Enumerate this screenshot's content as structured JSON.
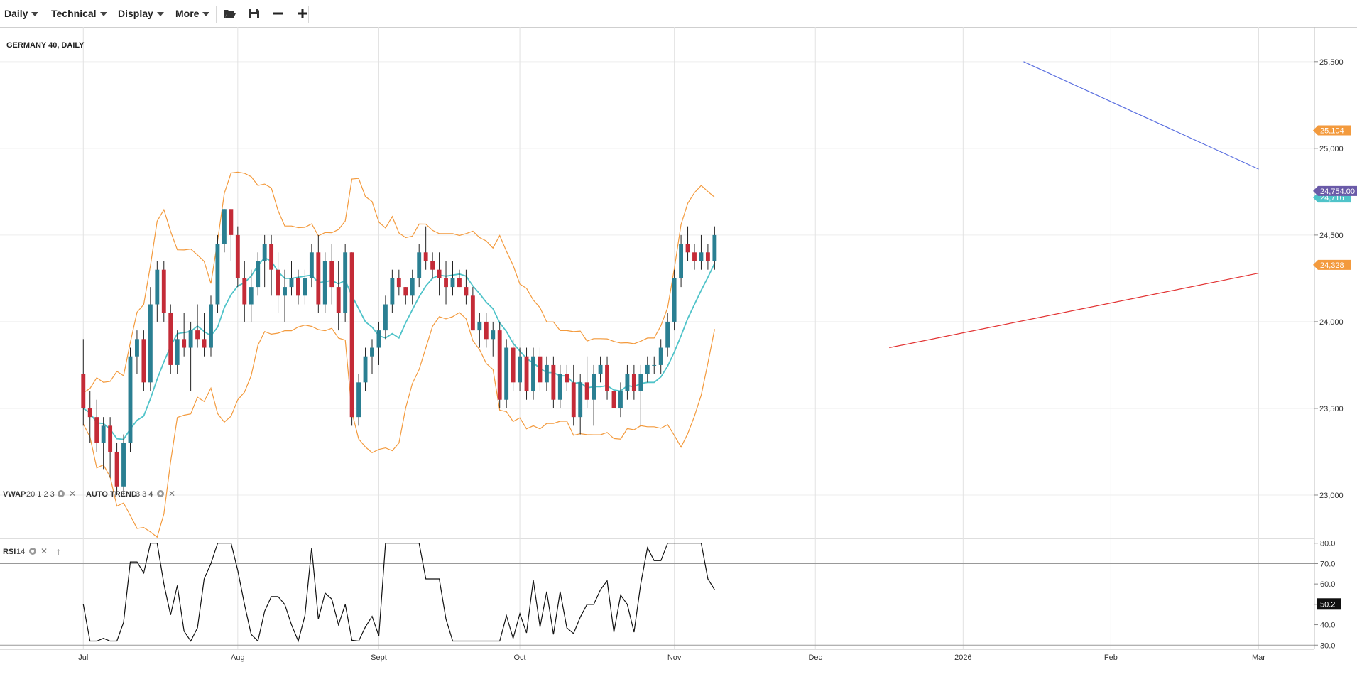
{
  "toolbar": {
    "period": "Daily",
    "technical": "Technical",
    "display": "Display",
    "more": "More"
  },
  "chart_data": {
    "type": "candlestick",
    "title": "GERMANY 40, DAILY",
    "y_ticks": [
      "25,500",
      "25,000",
      "24,500",
      "24,000",
      "23,500",
      "23,000"
    ],
    "y_tick_values": [
      25500,
      25000,
      24500,
      24000,
      23500,
      23000
    ],
    "ylim": [
      22750,
      25700
    ],
    "x_month_labels": [
      "Jul",
      "Aug",
      "Sept",
      "Oct",
      "Nov",
      "Dec",
      "2026",
      "Feb",
      "Mar"
    ],
    "x_month_index": [
      0,
      23,
      44,
      65,
      88,
      109,
      131,
      153,
      175
    ],
    "x_index_range": [
      -12.4,
      183.3
    ],
    "price_labels": {
      "upper_band": "25,104",
      "last_price": "24,754.00",
      "vwap": "24,716",
      "lower_band": "24,328"
    },
    "colors": {
      "up": "#2a7f92",
      "down": "#c42b37",
      "vwap": "#4fc3c9",
      "bands": "#f39a3d",
      "trend_down": "#5a6fe0",
      "trend_up": "#e23232",
      "price_tag": "#6a5aa8",
      "band_tag": "#f39a3d"
    },
    "indicators": [
      {
        "name": "VWAP",
        "params": "20 1 2 3"
      },
      {
        "name": "AUTO TREND",
        "params": "3 3 4"
      }
    ],
    "rsi": {
      "label": "RSI",
      "period": "14",
      "y_ticks": [
        "80.0",
        "70.0",
        "60.0",
        "50.0",
        "40.0",
        "30.0"
      ],
      "y_tick_values": [
        80,
        70,
        60,
        50,
        40,
        30
      ],
      "current": "50.2",
      "ylim": [
        28,
        82
      ]
    },
    "candles_ohlc": [
      [
        23700,
        23900,
        23400,
        23500
      ],
      [
        23500,
        23600,
        23300,
        23450
      ],
      [
        23450,
        23550,
        23250,
        23300
      ],
      [
        23300,
        23450,
        23150,
        23400
      ],
      [
        23400,
        23450,
        23100,
        23250
      ],
      [
        23250,
        23300,
        23000,
        23050
      ],
      [
        23050,
        23350,
        23000,
        23300
      ],
      [
        23300,
        23850,
        23250,
        23800
      ],
      [
        23800,
        23950,
        23700,
        23900
      ],
      [
        23900,
        23950,
        23600,
        23650
      ],
      [
        23650,
        24200,
        23600,
        24100
      ],
      [
        24100,
        24350,
        24000,
        24300
      ],
      [
        24300,
        24350,
        24000,
        24050
      ],
      [
        24050,
        24100,
        23700,
        23750
      ],
      [
        23750,
        23950,
        23700,
        23900
      ],
      [
        23900,
        24050,
        23800,
        23850
      ],
      [
        23850,
        24000,
        23600,
        23950
      ],
      [
        23950,
        24100,
        23850,
        23900
      ],
      [
        23900,
        24050,
        23800,
        23850
      ],
      [
        23850,
        24150,
        23800,
        24100
      ],
      [
        24100,
        24500,
        24050,
        24450
      ],
      [
        24450,
        24650,
        24400,
        24650
      ],
      [
        24650,
        24650,
        24350,
        24500
      ],
      [
        24500,
        24550,
        24200,
        24250
      ],
      [
        24250,
        24350,
        24000,
        24100
      ],
      [
        24100,
        24300,
        24000,
        24200
      ],
      [
        24200,
        24400,
        24150,
        24350
      ],
      [
        24350,
        24500,
        24200,
        24450
      ],
      [
        24450,
        24500,
        24150,
        24300
      ],
      [
        24300,
        24400,
        24050,
        24150
      ],
      [
        24150,
        24300,
        24000,
        24200
      ],
      [
        24200,
        24350,
        24150,
        24250
      ],
      [
        24250,
        24300,
        24100,
        24150
      ],
      [
        24150,
        24300,
        24100,
        24250
      ],
      [
        24250,
        24450,
        24200,
        24400
      ],
      [
        24400,
        24500,
        24050,
        24100
      ],
      [
        24100,
        24400,
        24050,
        24350
      ],
      [
        24350,
        24450,
        24100,
        24200
      ],
      [
        24200,
        24350,
        23950,
        24050
      ],
      [
        24050,
        24450,
        24000,
        24400
      ],
      [
        24400,
        24400,
        23400,
        23450
      ],
      [
        23450,
        23700,
        23400,
        23650
      ],
      [
        23650,
        23850,
        23600,
        23800
      ],
      [
        23800,
        23900,
        23700,
        23850
      ],
      [
        23850,
        24000,
        23750,
        23950
      ],
      [
        23950,
        24150,
        23900,
        24100
      ],
      [
        24100,
        24300,
        24050,
        24250
      ],
      [
        24250,
        24300,
        24150,
        24200
      ],
      [
        24200,
        24200,
        24100,
        24150
      ],
      [
        24150,
        24300,
        24100,
        24250
      ],
      [
        24250,
        24450,
        24200,
        24400
      ],
      [
        24400,
        24550,
        24300,
        24350
      ],
      [
        24350,
        24400,
        24250,
        24300
      ],
      [
        24300,
        24400,
        24150,
        24250
      ],
      [
        24250,
        24350,
        24100,
        24200
      ],
      [
        24200,
        24350,
        24150,
        24250
      ],
      [
        24250,
        24300,
        24200,
        24200
      ],
      [
        24200,
        24300,
        24100,
        24150
      ],
      [
        24150,
        24200,
        23950,
        23950
      ],
      [
        23950,
        24050,
        23850,
        24000
      ],
      [
        24000,
        24050,
        23850,
        23900
      ],
      [
        23900,
        24000,
        23800,
        23950
      ],
      [
        23950,
        24000,
        23500,
        23550
      ],
      [
        23550,
        23900,
        23500,
        23850
      ],
      [
        23850,
        23900,
        23600,
        23650
      ],
      [
        23650,
        23850,
        23600,
        23800
      ],
      [
        23800,
        23850,
        23550,
        23600
      ],
      [
        23600,
        23850,
        23550,
        23800
      ],
      [
        23800,
        23850,
        23600,
        23650
      ],
      [
        23650,
        23800,
        23600,
        23750
      ],
      [
        23750,
        23800,
        23500,
        23550
      ],
      [
        23550,
        23750,
        23500,
        23700
      ],
      [
        23700,
        23750,
        23600,
        23650
      ],
      [
        23650,
        23750,
        23400,
        23450
      ],
      [
        23450,
        23700,
        23350,
        23650
      ],
      [
        23650,
        23800,
        23500,
        23550
      ],
      [
        23550,
        23750,
        23400,
        23700
      ],
      [
        23700,
        23800,
        23650,
        23750
      ],
      [
        23750,
        23800,
        23550,
        23600
      ],
      [
        23600,
        23700,
        23450,
        23500
      ],
      [
        23500,
        23650,
        23450,
        23600
      ],
      [
        23600,
        23750,
        23550,
        23700
      ],
      [
        23700,
        23750,
        23550,
        23600
      ],
      [
        23600,
        23750,
        23400,
        23700
      ],
      [
        23700,
        23800,
        23650,
        23750
      ],
      [
        23750,
        23800,
        23700,
        23750
      ],
      [
        23750,
        23900,
        23700,
        23850
      ],
      [
        23850,
        24050,
        23800,
        24000
      ],
      [
        24000,
        24300,
        23950,
        24250
      ],
      [
        24250,
        24500,
        24200,
        24450
      ],
      [
        24450,
        24550,
        24350,
        24400
      ],
      [
        24400,
        24450,
        24300,
        24350
      ],
      [
        24350,
        24500,
        24300,
        24400
      ],
      [
        24400,
        24450,
        24300,
        24350
      ],
      [
        24350,
        24550,
        24300,
        24500
      ]
    ]
  }
}
